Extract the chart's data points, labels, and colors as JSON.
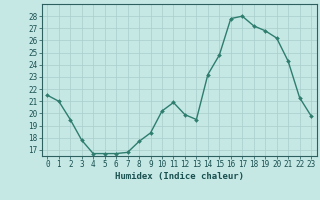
{
  "x": [
    0,
    1,
    2,
    3,
    4,
    5,
    6,
    7,
    8,
    9,
    10,
    11,
    12,
    13,
    14,
    15,
    16,
    17,
    18,
    19,
    20,
    21,
    22,
    23
  ],
  "y": [
    21.5,
    21.0,
    19.5,
    17.8,
    16.7,
    16.7,
    16.7,
    16.8,
    17.7,
    18.4,
    20.2,
    20.9,
    19.9,
    19.5,
    23.2,
    24.8,
    27.8,
    28.0,
    27.2,
    26.8,
    26.2,
    24.3,
    21.3,
    19.8
  ],
  "line_color": "#2e7d6e",
  "marker": "D",
  "marker_size": 2,
  "bg_color": "#c5e8e5",
  "grid_color": "#a8ceca",
  "xlabel": "Humidex (Indice chaleur)",
  "xlim": [
    -0.5,
    23.5
  ],
  "ylim": [
    16.5,
    29
  ],
  "yticks": [
    17,
    18,
    19,
    20,
    21,
    22,
    23,
    24,
    25,
    26,
    27,
    28
  ],
  "xticks": [
    0,
    1,
    2,
    3,
    4,
    5,
    6,
    7,
    8,
    9,
    10,
    11,
    12,
    13,
    14,
    15,
    16,
    17,
    18,
    19,
    20,
    21,
    22,
    23
  ],
  "tick_label_fontsize": 5.5,
  "xlabel_fontsize": 6.5,
  "line_width": 1.0,
  "axis_color": "#2e6060",
  "tick_color": "#1a5050"
}
